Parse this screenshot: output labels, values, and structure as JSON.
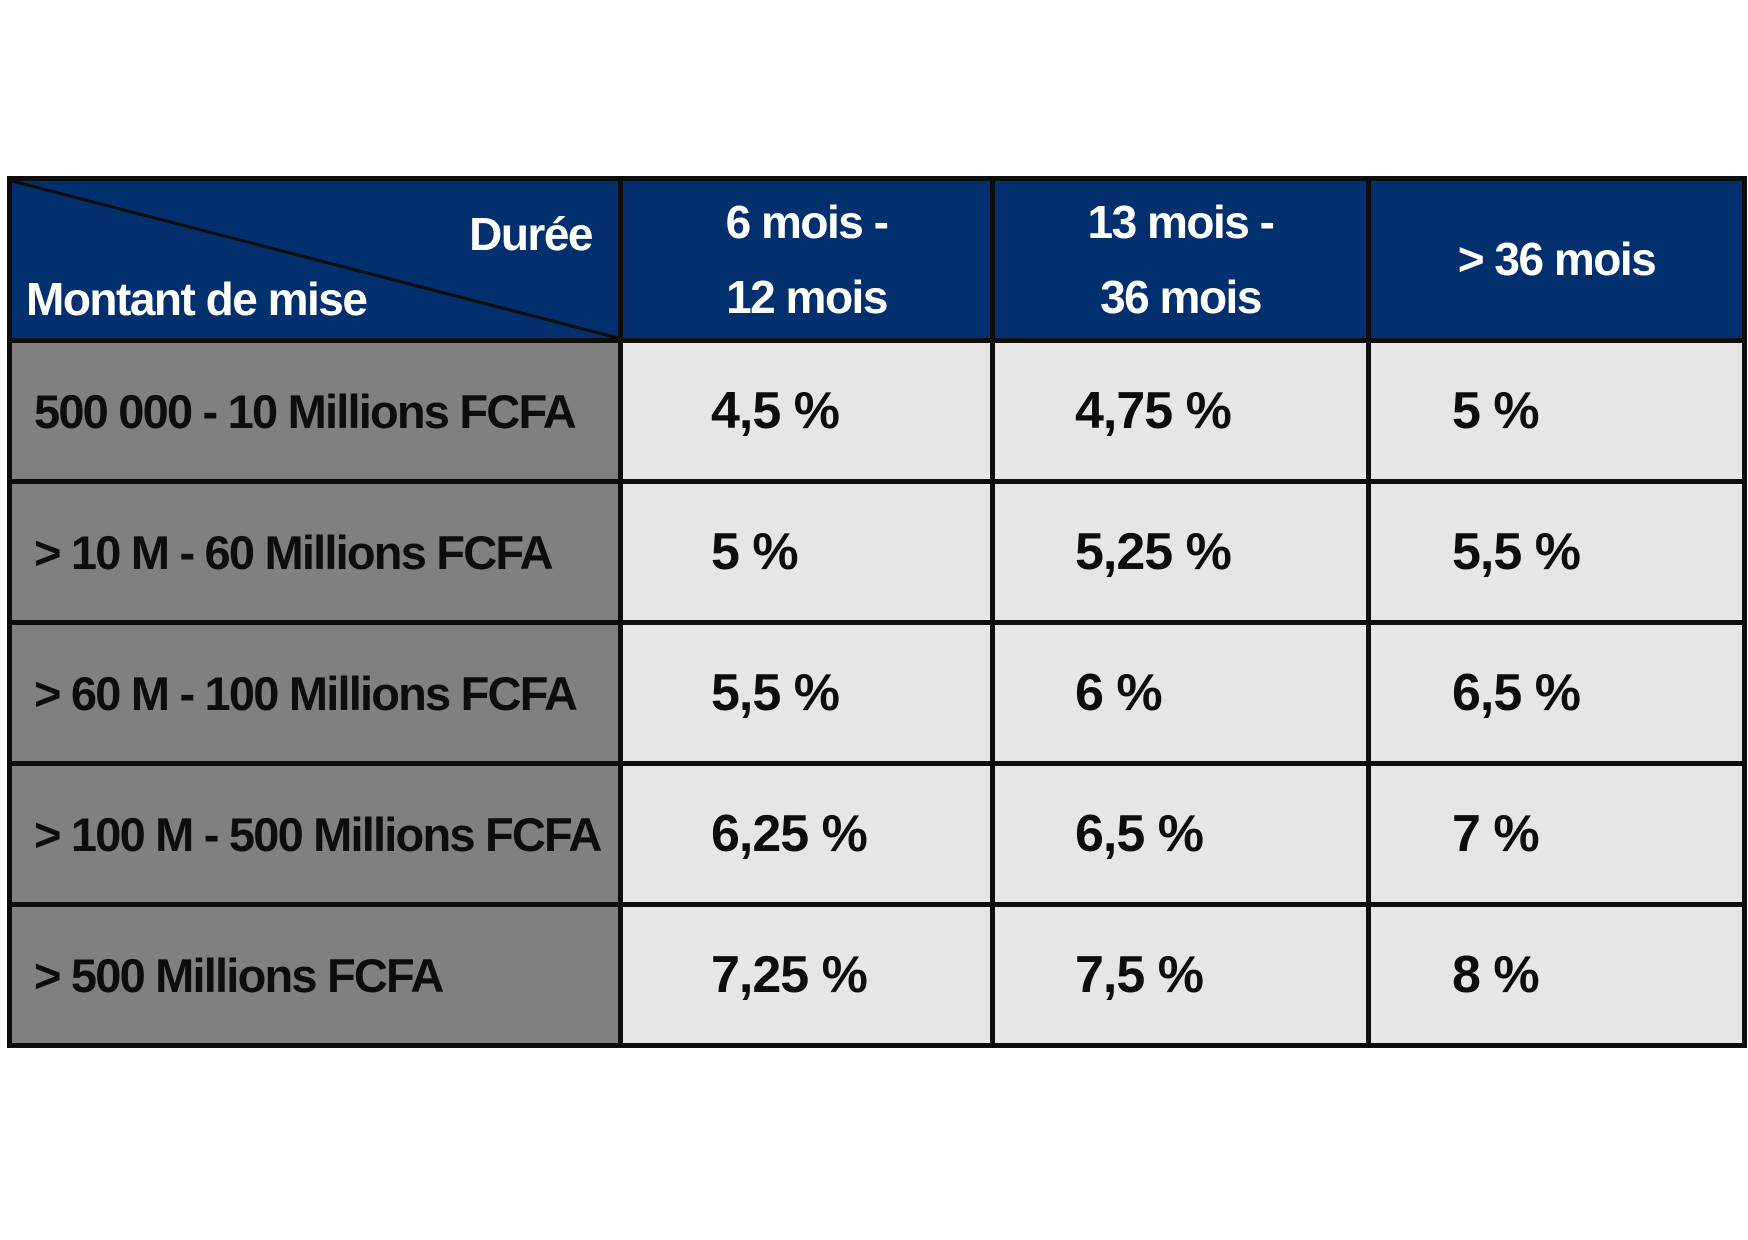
{
  "table": {
    "corner": {
      "top_right_label": "Durée",
      "bottom_left_label": "Montant de mise"
    },
    "duration_headers": [
      {
        "line1": "6 mois -",
        "line2": "12 mois"
      },
      {
        "line1": "13 mois -",
        "line2": "36 mois"
      },
      {
        "line1": "> 36 mois",
        "line2": ""
      }
    ],
    "rows": [
      {
        "amount": "500 000 - 10 Millions FCFA",
        "rates": [
          "4,5 %",
          "4,75 %",
          "5 %"
        ]
      },
      {
        "amount": "> 10 M - 60 Millions FCFA",
        "rates": [
          "5 %",
          "5,25 %",
          "5,5 %"
        ]
      },
      {
        "amount": "> 60 M - 100 Millions FCFA",
        "rates": [
          "5,5 %",
          "6 %",
          "6,5 %"
        ]
      },
      {
        "amount": "> 100 M - 500 Millions FCFA",
        "rates": [
          "6,25 %",
          "6,5 %",
          "7 %"
        ]
      },
      {
        "amount": "> 500 Millions FCFA",
        "rates": [
          "7,25 %",
          "7,5 %",
          "8 %"
        ]
      }
    ]
  },
  "colors": {
    "header_bg": "#02306f",
    "label_bg": "#808080",
    "cell_bg": "#e6e6e6",
    "border": "#0d0d0d"
  }
}
